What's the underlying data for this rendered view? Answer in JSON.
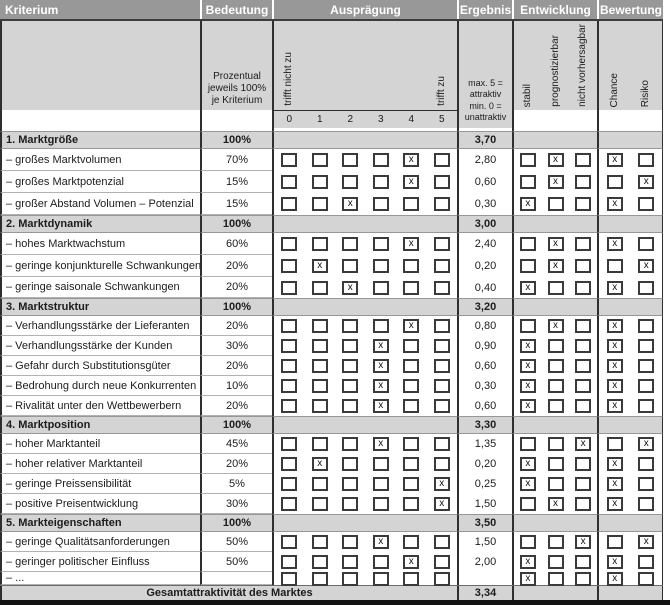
{
  "header": {
    "kriterium": "Kriterium",
    "bedeutung": "Bedeutung",
    "auspraegung": "Ausprägung",
    "ergebnis": "Ergebnis",
    "entwicklung": "Entwicklung",
    "bewertung": "Bewertung"
  },
  "subheader": {
    "bedeutung_note_lines": [
      "Prozentual",
      "jeweils 100%",
      "je Kriterium"
    ],
    "scale_min_label": "trifft nicht zu",
    "scale_max_label": "trifft zu",
    "scale_ticks": [
      "0",
      "1",
      "2",
      "3",
      "4",
      "5"
    ],
    "ergebnis_note_lines": [
      "max. 5 =",
      "attraktiv",
      "min. 0 =",
      "unattraktiv"
    ],
    "entwicklung_labels": [
      "stabil",
      "prognostizierbar",
      "nicht vorhersagbar"
    ],
    "bewertung_labels": [
      "Chance",
      "Risiko"
    ]
  },
  "sections": [
    {
      "title": "1. Marktgröße",
      "weight": "100%",
      "result": "3,70",
      "rows": [
        {
          "label": "– großes Marktvolumen",
          "weight": "70%",
          "rating": 4,
          "result": "2,80",
          "entwicklung": 1,
          "bewertung": 0
        },
        {
          "label": "– großes Marktpotenzial",
          "weight": "15%",
          "rating": 4,
          "result": "0,60",
          "entwicklung": 1,
          "bewertung": 1
        },
        {
          "label": "– großer Abstand Volumen – Potenzial",
          "weight": "15%",
          "rating": 2,
          "result": "0,30",
          "entwicklung": 0,
          "bewertung": 0
        }
      ]
    },
    {
      "title": "2. Marktdynamik",
      "weight": "100%",
      "result": "3,00",
      "rows": [
        {
          "label": "– hohes Marktwachstum",
          "weight": "60%",
          "rating": 4,
          "result": "2,40",
          "entwicklung": 1,
          "bewertung": 0
        },
        {
          "label": "– geringe konjunkturelle Schwankungen",
          "weight": "20%",
          "rating": 1,
          "result": "0,20",
          "entwicklung": 1,
          "bewertung": 1
        },
        {
          "label": "– geringe saisonale Schwankungen",
          "weight": "20%",
          "rating": 2,
          "result": "0,40",
          "entwicklung": 0,
          "bewertung": 0
        }
      ]
    },
    {
      "title": "3. Marktstruktur",
      "weight": "100%",
      "result": "3,20",
      "rows": [
        {
          "label": "– Verhandlungsstärke der Lieferanten",
          "weight": "20%",
          "rating": 4,
          "result": "0,80",
          "entwicklung": 1,
          "bewertung": 0
        },
        {
          "label": "– Verhandlungsstärke der Kunden",
          "weight": "30%",
          "rating": 3,
          "result": "0,90",
          "entwicklung": 0,
          "bewertung": 0
        },
        {
          "label": "– Gefahr durch Substitutionsgüter",
          "weight": "20%",
          "rating": 3,
          "result": "0,60",
          "entwicklung": 0,
          "bewertung": 0
        },
        {
          "label": "– Bedrohung durch neue Konkurrenten",
          "weight": "10%",
          "rating": 3,
          "result": "0,30",
          "entwicklung": 0,
          "bewertung": 0
        },
        {
          "label": "– Rivalität unter den Wettbewerbern",
          "weight": "20%",
          "rating": 3,
          "result": "0,60",
          "entwicklung": 0,
          "bewertung": 0
        }
      ]
    },
    {
      "title": "4. Marktposition",
      "weight": "100%",
      "result": "3,30",
      "rows": [
        {
          "label": "– hoher Marktanteil",
          "weight": "45%",
          "rating": 3,
          "result": "1,35",
          "entwicklung": 2,
          "bewertung": 1
        },
        {
          "label": "– hoher relativer Marktanteil",
          "weight": "20%",
          "rating": 1,
          "result": "0,20",
          "entwicklung": 0,
          "bewertung": 0
        },
        {
          "label": "– geringe Preissensibilität",
          "weight": "5%",
          "rating": 5,
          "result": "0,25",
          "entwicklung": 0,
          "bewertung": 0
        },
        {
          "label": "– positive Preisentwicklung",
          "weight": "30%",
          "rating": 5,
          "result": "1,50",
          "entwicklung": 1,
          "bewertung": 0
        }
      ]
    },
    {
      "title": "5. Markteigenschaften",
      "weight": "100%",
      "result": "3,50",
      "rows": [
        {
          "label": "– geringe Qualitätsanforderungen",
          "weight": "50%",
          "rating": 3,
          "result": "1,50",
          "entwicklung": 2,
          "bewertung": 1
        },
        {
          "label": "– geringer politischer Einfluss",
          "weight": "50%",
          "rating": 4,
          "result": "2,00",
          "entwicklung": 0,
          "bewertung": 0
        },
        {
          "label": "– ...",
          "weight": "",
          "rating": null,
          "result": "",
          "entwicklung": 0,
          "bewertung": 0
        }
      ]
    }
  ],
  "footer": {
    "label": "Gesamtattraktivität des Marktes",
    "result": "3,34"
  },
  "colors": {
    "header_bg": "#989898",
    "band_bg": "#d4d4d4",
    "line": "#2e2e2e",
    "row_separator": "#b2b2b2"
  }
}
